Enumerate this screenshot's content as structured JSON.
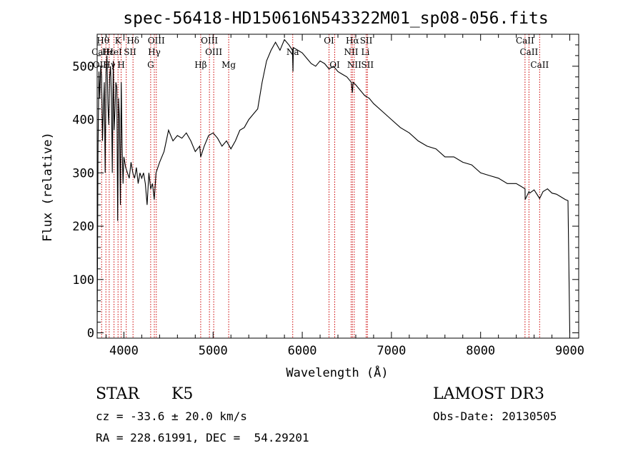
{
  "chart_data": {
    "type": "line",
    "title": "spec-56418-HD150616N543322M01_sp08-056.fits",
    "xlabel": "Wavelength (Å)",
    "ylabel": "Flux (relative)",
    "xlim": [
      3700,
      9100
    ],
    "ylim": [
      -10,
      560
    ],
    "x_ticks": [
      4000,
      5000,
      6000,
      7000,
      8000,
      9000
    ],
    "y_ticks": [
      0,
      100,
      200,
      300,
      400,
      500
    ],
    "grid": false,
    "series": [
      {
        "x": [
          3700,
          3710,
          3720,
          3730,
          3740,
          3750,
          3760,
          3770,
          3780,
          3790,
          3800,
          3810,
          3820,
          3830,
          3840,
          3850,
          3860,
          3870,
          3880,
          3890,
          3900,
          3910,
          3920,
          3930,
          3940,
          3950,
          3960,
          3970,
          3980,
          3990,
          4000,
          4020,
          4040,
          4060,
          4080,
          4100,
          4120,
          4140,
          4160,
          4180,
          4200,
          4220,
          4240,
          4260,
          4280,
          4300,
          4320,
          4340,
          4360,
          4380,
          4400,
          4450,
          4500,
          4550,
          4600,
          4650,
          4700,
          4750,
          4800,
          4850,
          4861,
          4900,
          4950,
          5000,
          5050,
          5100,
          5150,
          5200,
          5250,
          5300,
          5350,
          5400,
          5450,
          5500,
          5550,
          5600,
          5650,
          5700,
          5750,
          5800,
          5850,
          5890,
          5896,
          5900,
          5950,
          6000,
          6050,
          6100,
          6150,
          6200,
          6250,
          6300,
          6350,
          6400,
          6450,
          6500,
          6550,
          6563,
          6570,
          6600,
          6650,
          6700,
          6750,
          6800,
          6900,
          7000,
          7100,
          7200,
          7300,
          7400,
          7500,
          7600,
          7700,
          7800,
          7900,
          8000,
          8100,
          8200,
          8300,
          8400,
          8450,
          8498,
          8500,
          8542,
          8550,
          8600,
          8662,
          8700,
          8750,
          8800,
          8850,
          8900,
          8950,
          8980,
          9000
        ],
        "y": [
          0,
          350,
          490,
          440,
          500,
          480,
          360,
          420,
          470,
          300,
          490,
          520,
          430,
          390,
          480,
          500,
          440,
          300,
          510,
          380,
          420,
          470,
          460,
          210,
          440,
          400,
          240,
          470,
          350,
          280,
          330,
          310,
          300,
          290,
          320,
          300,
          290,
          310,
          280,
          300,
          290,
          300,
          280,
          240,
          300,
          270,
          280,
          250,
          300,
          310,
          320,
          340,
          380,
          360,
          370,
          365,
          375,
          360,
          340,
          350,
          330,
          350,
          370,
          375,
          365,
          350,
          360,
          345,
          360,
          380,
          385,
          400,
          410,
          420,
          470,
          510,
          530,
          545,
          530,
          550,
          540,
          530,
          490,
          535,
          530,
          525,
          515,
          505,
          500,
          510,
          505,
          495,
          500,
          490,
          485,
          480,
          470,
          450,
          470,
          465,
          455,
          445,
          440,
          430,
          415,
          400,
          385,
          375,
          360,
          350,
          345,
          330,
          330,
          320,
          315,
          300,
          295,
          290,
          280,
          280,
          275,
          270,
          250,
          265,
          262,
          268,
          252,
          265,
          270,
          262,
          260,
          255,
          250,
          248,
          0
        ]
      }
    ],
    "annotations": {
      "lines_wavelengths": [
        3750,
        3798,
        3835,
        3889,
        3934,
        3969,
        4026,
        4102,
        4300,
        4341,
        4363,
        4861,
        4959,
        5007,
        5175,
        5893,
        6300,
        6364,
        6548,
        6563,
        6583,
        6717,
        6731,
        8498,
        8542,
        8662
      ],
      "labels": [
        {
          "text": "Hθ",
          "w": 3766,
          "row": 1
        },
        {
          "text": "K",
          "w": 3934,
          "row": 1
        },
        {
          "text": "Hδ",
          "w": 4102,
          "row": 1
        },
        {
          "text": "OIII",
          "w": 4363,
          "row": 1
        },
        {
          "text": "OIII",
          "w": 4959,
          "row": 1
        },
        {
          "text": "OI",
          "w": 6300,
          "row": 1
        },
        {
          "text": "Hα",
          "w": 6563,
          "row": 1
        },
        {
          "text": "SII",
          "w": 6717,
          "row": 1
        },
        {
          "text": "CaII",
          "w": 8498,
          "row": 1
        },
        {
          "text": "CaII",
          "w": 3740,
          "row": 2
        },
        {
          "text": "Hε",
          "w": 3820,
          "row": 2
        },
        {
          "text": "HeI",
          "w": 3889,
          "row": 2
        },
        {
          "text": "SII",
          "w": 4069,
          "row": 2
        },
        {
          "text": "Hγ",
          "w": 4341,
          "row": 2
        },
        {
          "text": "OIII",
          "w": 5007,
          "row": 2
        },
        {
          "text": "Na",
          "w": 5893,
          "row": 2
        },
        {
          "text": "NII",
          "w": 6548,
          "row": 2
        },
        {
          "text": "Li",
          "w": 6708,
          "row": 2
        },
        {
          "text": "CaII",
          "w": 8542,
          "row": 2
        },
        {
          "text": "OII",
          "w": 3727,
          "row": 3
        },
        {
          "text": "Hγ",
          "w": 3835,
          "row": 3
        },
        {
          "text": "H",
          "w": 3969,
          "row": 3
        },
        {
          "text": "G",
          "w": 4300,
          "row": 3
        },
        {
          "text": "Hβ",
          "w": 4861,
          "row": 3
        },
        {
          "text": "Mg",
          "w": 5175,
          "row": 3
        },
        {
          "text": "OI",
          "w": 6364,
          "row": 3
        },
        {
          "text": "NII",
          "w": 6583,
          "row": 3
        },
        {
          "text": "SII",
          "w": 6731,
          "row": 3
        },
        {
          "text": "CaII",
          "w": 8662,
          "row": 3
        }
      ]
    },
    "line_color": "#000000",
    "marker_color": "#cc0000"
  },
  "info": {
    "class_label": "STAR",
    "subclass": "K5",
    "cz": "cz = -33.6 ± 20.0 km/s",
    "coords": "RA = 228.61991, DEC =  54.29201",
    "survey": "LAMOST DR3",
    "obs_date": "Obs-Date: 20130505"
  }
}
